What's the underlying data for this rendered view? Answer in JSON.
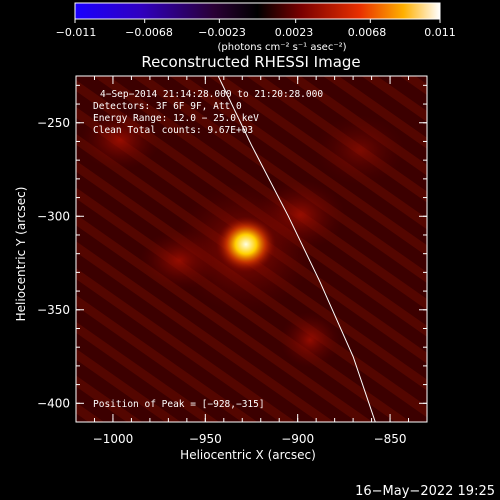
{
  "colorbar": {
    "ticks": [
      "−0.011",
      "−0.0068",
      "−0.0023",
      "0.0023",
      "0.0068",
      "0.011"
    ],
    "unit_label": "(photons cm⁻² s⁻¹ asec⁻²)",
    "range": [
      -0.011,
      0.011
    ]
  },
  "chart_data": {
    "type": "heatmap",
    "title": "Reconstructed RHESSI Image",
    "xlabel": "Heliocentric X (arcsec)",
    "ylabel": "Heliocentric Y (arcsec)",
    "xlim": [
      -1020,
      -830
    ],
    "ylim": [
      -410,
      -225
    ],
    "x_ticks": [
      {
        "value": -1000,
        "label": "−1000"
      },
      {
        "value": -950,
        "label": "−950"
      },
      {
        "value": -900,
        "label": "−900"
      },
      {
        "value": -850,
        "label": "−850"
      }
    ],
    "y_ticks": [
      {
        "value": -250,
        "label": "−250"
      },
      {
        "value": -300,
        "label": "−300"
      },
      {
        "value": -350,
        "label": "−350"
      },
      {
        "value": -400,
        "label": "−400"
      }
    ],
    "annotations": [
      "4−Sep−2014 21:14:28.000 to 21:20:28.000",
      "Detectors: 3F 6F 9F, Att 0",
      "Energy Range: 12.0 − 25.0 keV",
      "Clean    Total counts: 9.67E+03"
    ],
    "peak_label": "Position of Peak = [−928,−315]",
    "peak": {
      "x": -928,
      "y": -315
    },
    "limb": [
      {
        "x": -943,
        "y": -225
      },
      {
        "x": -925,
        "y": -262
      },
      {
        "x": -905,
        "y": -300
      },
      {
        "x": -888,
        "y": -335
      },
      {
        "x": -870,
        "y": -375
      },
      {
        "x": -858,
        "y": -410
      }
    ],
    "colormap": [
      "#0000ff",
      "#5500aa",
      "#000000",
      "#8b0000",
      "#ff6a00",
      "#ffd700",
      "#ffffff"
    ]
  },
  "footer": {
    "date": "16−May−2022 19:25"
  }
}
